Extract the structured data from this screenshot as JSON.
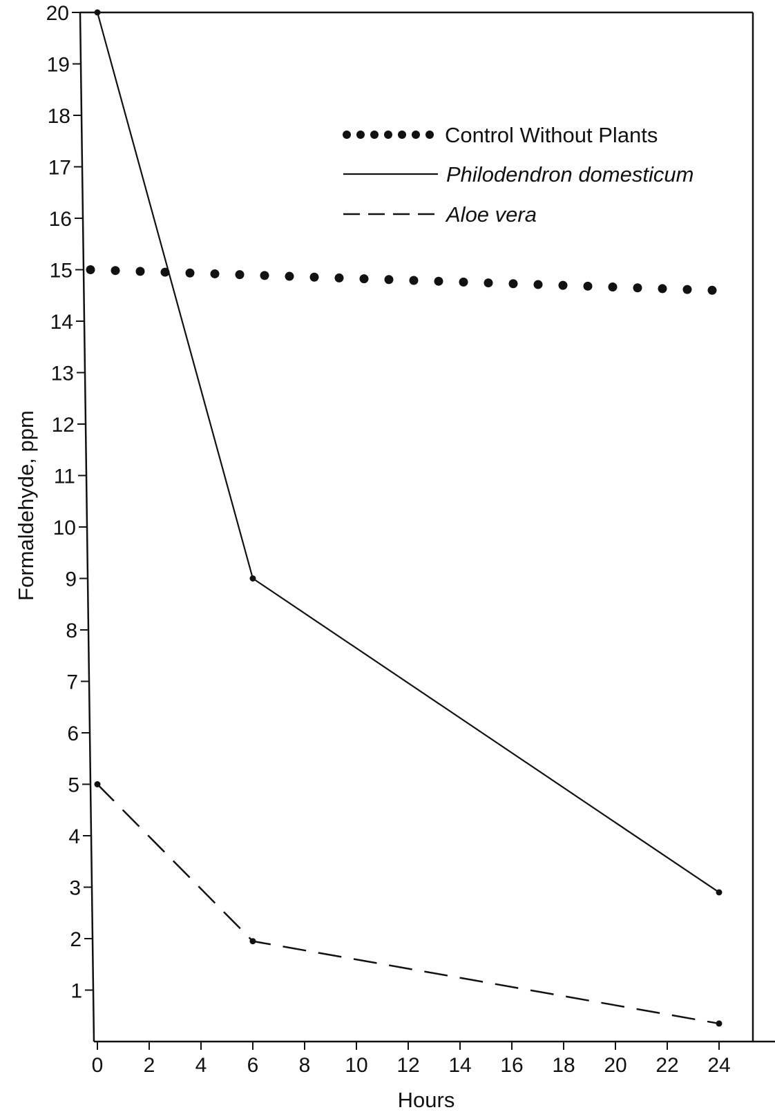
{
  "chart_data": {
    "type": "line",
    "title": "",
    "xlabel": "Hours",
    "ylabel": "Formaldehyde, ppm",
    "xlim": [
      -0.3,
      26
    ],
    "ylim": [
      0,
      20
    ],
    "x_ticks": [
      "0",
      "2",
      "4",
      "6",
      "8",
      "10",
      "12",
      "14",
      "16",
      "18",
      "20",
      "22",
      "24"
    ],
    "y_ticks": [
      "1",
      "2",
      "3",
      "4",
      "5",
      "6",
      "7",
      "8",
      "9",
      "10",
      "11",
      "12",
      "13",
      "14",
      "15",
      "16",
      "17",
      "18",
      "19",
      "20"
    ],
    "grid": false,
    "legend_position": "top-right",
    "series": [
      {
        "name": "Control Without Plants",
        "style": "dotted",
        "x": [
          0,
          24
        ],
        "y": [
          15.0,
          14.6
        ]
      },
      {
        "name": "Philodendron domesticum",
        "style": "solid",
        "italic": true,
        "x": [
          0,
          6,
          24
        ],
        "y": [
          20,
          9,
          2.9
        ]
      },
      {
        "name": "Aloe vera",
        "style": "dashed",
        "italic": true,
        "x": [
          0,
          6,
          24
        ],
        "y": [
          5,
          1.95,
          0.35
        ]
      }
    ]
  }
}
